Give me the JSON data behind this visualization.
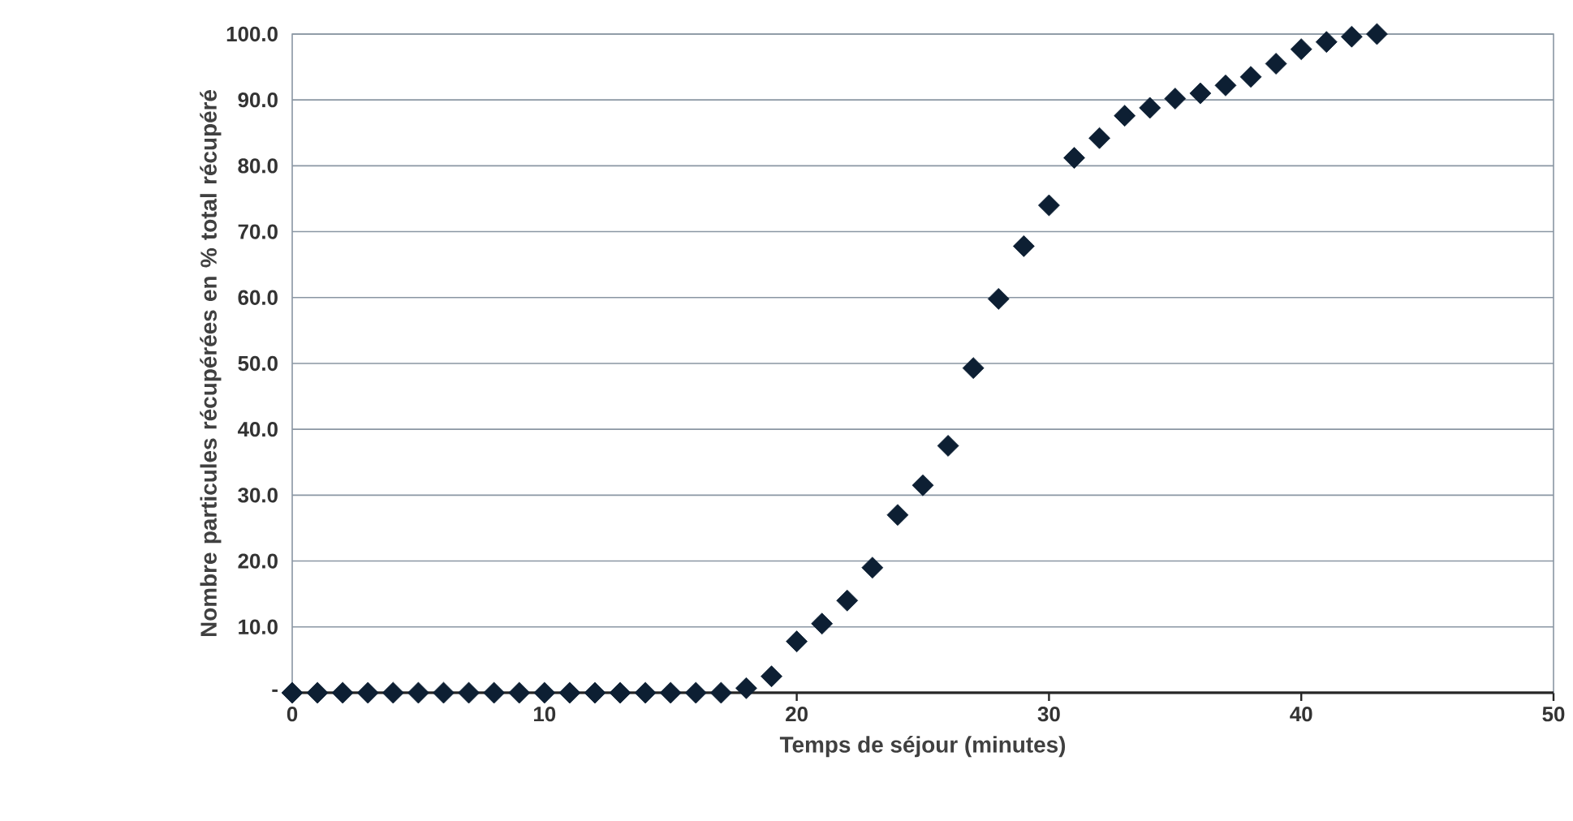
{
  "chart_data": {
    "type": "scatter",
    "xlabel": "Temps de séjour (minutes)",
    "ylabel": "Nombre particules récupérées en % total récupéré",
    "x": [
      0,
      1,
      2,
      3,
      4,
      5,
      6,
      7,
      8,
      9,
      10,
      11,
      12,
      13,
      14,
      15,
      16,
      17,
      18,
      19,
      20,
      21,
      22,
      23,
      24,
      25,
      26,
      27,
      28,
      29,
      30,
      31,
      32,
      33,
      34,
      35,
      36,
      37,
      38,
      39,
      40,
      41,
      42,
      43
    ],
    "values": [
      0,
      0,
      0,
      0,
      0,
      0,
      0,
      0,
      0,
      0,
      0,
      0,
      0,
      0,
      0,
      0,
      0,
      0,
      0.7,
      2.5,
      7.8,
      10.5,
      14,
      19,
      27,
      31.5,
      37.5,
      49.3,
      59.8,
      67.8,
      74,
      81.2,
      84.2,
      87.6,
      88.8,
      90.2,
      91,
      92.2,
      93.5,
      95.5,
      97.7,
      98.8,
      99.6,
      100
    ],
    "color": "#0d1f33",
    "marker": "diamond",
    "xlim": [
      0,
      50
    ],
    "xticks": [
      0,
      10,
      20,
      30,
      40,
      50
    ],
    "ylim": [
      0,
      100
    ],
    "yticks": [
      {
        "value": 0,
        "label": "-"
      },
      {
        "value": 10,
        "label": "10.0"
      },
      {
        "value": 20,
        "label": "20.0"
      },
      {
        "value": 30,
        "label": "30.0"
      },
      {
        "value": 40,
        "label": "40.0"
      },
      {
        "value": 50,
        "label": "50.0"
      },
      {
        "value": 60,
        "label": "60.0"
      },
      {
        "value": 70,
        "label": "70.0"
      },
      {
        "value": 80,
        "label": "80.0"
      },
      {
        "value": 90,
        "label": "90.0"
      },
      {
        "value": 100,
        "label": "100.0"
      }
    ],
    "grid": "y"
  }
}
